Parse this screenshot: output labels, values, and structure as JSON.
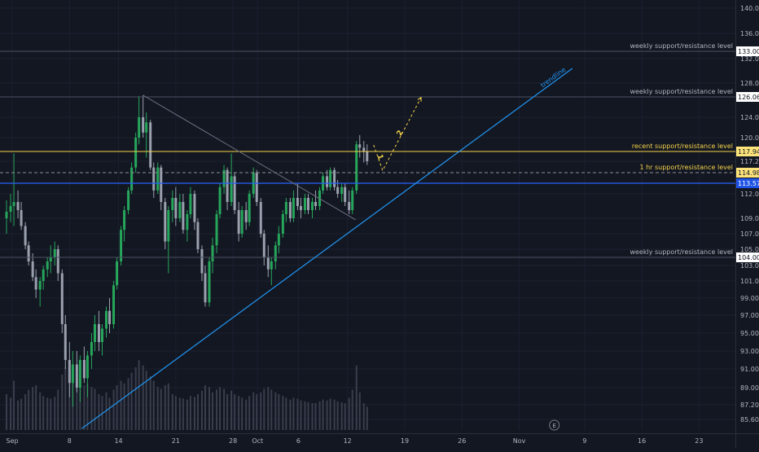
{
  "theme": {
    "background": "#131722",
    "axis_text": "#b2b5be",
    "grid": "#1c2030",
    "up_color": "#26a65b",
    "down_color": "#9aa0ad",
    "weekly_level_color": "#4a5063",
    "recent_level_color": "#f5d34a",
    "hourly_level_color": "#8e8f94",
    "blue_level_color": "#2962ff",
    "trendline_color": "#2196f3",
    "downtrend_color": "#6b7080",
    "projection_color": "#f5d34a"
  },
  "chart_data": {
    "type": "candlestick",
    "y_axis": {
      "ticks": [
        140.0,
        136.0,
        132.0,
        128.0,
        124.0,
        120.0,
        117.24,
        112.0,
        109.0,
        107.0,
        105.0,
        103.0,
        101.0,
        99.0,
        97.0,
        95.0,
        93.0,
        91.0,
        89.0,
        87.2,
        85.6
      ],
      "tick_labels": [
        "140.00",
        "136.00",
        "132.00",
        "128.00",
        "124.00",
        "120.00",
        "117.24",
        "112.00",
        "109.00",
        "107.00",
        "105.00",
        "103.00",
        "101.00",
        "99.00",
        "97.00",
        "95.00",
        "93.00",
        "91.00",
        "89.00",
        "87.20",
        "85.60"
      ]
    },
    "x_axis": {
      "ticks": [
        {
          "label": "Sep",
          "day": 1
        },
        {
          "label": "8",
          "day": 8
        },
        {
          "label": "14",
          "day": 14
        },
        {
          "label": "21",
          "day": 21
        },
        {
          "label": "28",
          "day": 28
        },
        {
          "label": "Oct",
          "day": 31
        },
        {
          "label": "6",
          "day": 36
        },
        {
          "label": "12",
          "day": 42
        },
        {
          "label": "19",
          "day": 49
        },
        {
          "label": "26",
          "day": 56
        },
        {
          "label": "Nov",
          "day": 63
        },
        {
          "label": "9",
          "day": 71
        },
        {
          "label": "16",
          "day": 78
        },
        {
          "label": "23",
          "day": 85
        }
      ]
    },
    "levels": [
      {
        "price": 133.0,
        "price_label": "133.00",
        "label": "weekly support/resistance level",
        "kind": "weekly"
      },
      {
        "price": 126.06,
        "price_label": "126.06",
        "label": "weekly support/resistance level",
        "kind": "weekly"
      },
      {
        "price": 117.94,
        "price_label": "117.94",
        "label": "recent support/resistance level",
        "kind": "recent"
      },
      {
        "price": 114.98,
        "price_label": "114.98",
        "label": "1 hr support/resistance level",
        "kind": "hourly"
      },
      {
        "price": 113.57,
        "price_label": "113.57",
        "label": "",
        "kind": "blue"
      },
      {
        "price": 104.0,
        "price_label": "104.00",
        "label": "weekly support/resistance level",
        "kind": "weekly"
      }
    ],
    "trendline": {
      "label": "trendline",
      "from": {
        "day": 9.5,
        "price": 84.6
      },
      "to": {
        "day": 69.5,
        "price": 130.4
      }
    },
    "downtrend_line": {
      "from": {
        "day": 17,
        "price": 126.3
      },
      "to": {
        "day": 43,
        "price": 108.8
      }
    },
    "projection": {
      "wave_labels": [
        "1",
        "2"
      ],
      "points": [
        {
          "day": 45.2,
          "price": 118.9
        },
        {
          "day": 46.3,
          "price": 115.4
        },
        {
          "day": 51.0,
          "price": 126.0
        }
      ]
    },
    "earnings_marker": {
      "label": "E",
      "day": 67.3
    },
    "volume_scale_max": 100,
    "candles": [
      {
        "day": 0.3,
        "o": 109.0,
        "h": 111.2,
        "l": 107.0,
        "c": 109.8,
        "v": 40
      },
      {
        "day": 0.8,
        "o": 109.8,
        "h": 112.0,
        "l": 108.5,
        "c": 110.5,
        "v": 36
      },
      {
        "day": 1.2,
        "o": 110.5,
        "h": 117.8,
        "l": 108.0,
        "c": 111.0,
        "v": 55
      },
      {
        "day": 1.7,
        "o": 111.0,
        "h": 112.5,
        "l": 109.0,
        "c": 110.0,
        "v": 33
      },
      {
        "day": 2.1,
        "o": 110.0,
        "h": 111.0,
        "l": 107.5,
        "c": 108.0,
        "v": 35
      },
      {
        "day": 2.6,
        "o": 108.0,
        "h": 108.5,
        "l": 105.0,
        "c": 105.5,
        "v": 40
      },
      {
        "day": 3.0,
        "o": 105.5,
        "h": 106.0,
        "l": 103.0,
        "c": 103.5,
        "v": 45
      },
      {
        "day": 3.5,
        "o": 103.5,
        "h": 104.5,
        "l": 101.0,
        "c": 101.5,
        "v": 48
      },
      {
        "day": 3.9,
        "o": 101.5,
        "h": 102.5,
        "l": 99.0,
        "c": 100.0,
        "v": 50
      },
      {
        "day": 4.4,
        "o": 100.0,
        "h": 101.5,
        "l": 98.0,
        "c": 101.0,
        "v": 42
      },
      {
        "day": 4.8,
        "o": 101.0,
        "h": 103.0,
        "l": 100.0,
        "c": 102.5,
        "v": 38
      },
      {
        "day": 5.3,
        "o": 102.5,
        "h": 104.0,
        "l": 101.5,
        "c": 103.5,
        "v": 36
      },
      {
        "day": 5.7,
        "o": 103.5,
        "h": 105.5,
        "l": 102.0,
        "c": 104.0,
        "v": 35
      },
      {
        "day": 6.2,
        "o": 104.0,
        "h": 106.0,
        "l": 103.0,
        "c": 105.0,
        "v": 37
      },
      {
        "day": 6.6,
        "o": 105.0,
        "h": 105.5,
        "l": 101.0,
        "c": 102.0,
        "v": 45
      },
      {
        "day": 7.1,
        "o": 102.0,
        "h": 102.5,
        "l": 95.0,
        "c": 96.0,
        "v": 62
      },
      {
        "day": 7.5,
        "o": 96.0,
        "h": 97.0,
        "l": 91.0,
        "c": 92.0,
        "v": 70
      },
      {
        "day": 8.0,
        "o": 92.0,
        "h": 94.0,
        "l": 88.0,
        "c": 89.5,
        "v": 75
      },
      {
        "day": 8.4,
        "o": 89.5,
        "h": 93.0,
        "l": 87.0,
        "c": 91.5,
        "v": 66
      },
      {
        "day": 8.9,
        "o": 91.5,
        "h": 93.0,
        "l": 88.5,
        "c": 89.0,
        "v": 55
      },
      {
        "day": 9.3,
        "o": 89.0,
        "h": 92.5,
        "l": 87.5,
        "c": 92.0,
        "v": 60
      },
      {
        "day": 9.8,
        "o": 92.0,
        "h": 93.5,
        "l": 89.5,
        "c": 90.0,
        "v": 50
      },
      {
        "day": 10.2,
        "o": 90.0,
        "h": 93.0,
        "l": 88.0,
        "c": 92.5,
        "v": 52
      },
      {
        "day": 10.7,
        "o": 92.5,
        "h": 95.0,
        "l": 91.0,
        "c": 94.0,
        "v": 48
      },
      {
        "day": 11.1,
        "o": 94.0,
        "h": 97.0,
        "l": 93.0,
        "c": 96.0,
        "v": 46
      },
      {
        "day": 11.6,
        "o": 96.0,
        "h": 97.5,
        "l": 93.0,
        "c": 94.0,
        "v": 40
      },
      {
        "day": 12.0,
        "o": 94.0,
        "h": 96.0,
        "l": 92.5,
        "c": 95.5,
        "v": 38
      },
      {
        "day": 12.5,
        "o": 95.5,
        "h": 98.0,
        "l": 94.5,
        "c": 97.5,
        "v": 42
      },
      {
        "day": 12.9,
        "o": 97.5,
        "h": 99.0,
        "l": 95.0,
        "c": 96.0,
        "v": 36
      },
      {
        "day": 13.4,
        "o": 96.0,
        "h": 101.0,
        "l": 95.5,
        "c": 100.5,
        "v": 45
      },
      {
        "day": 13.8,
        "o": 100.5,
        "h": 104.0,
        "l": 100.0,
        "c": 103.5,
        "v": 50
      },
      {
        "day": 14.3,
        "o": 103.5,
        "h": 108.0,
        "l": 103.0,
        "c": 107.5,
        "v": 55
      },
      {
        "day": 14.7,
        "o": 107.5,
        "h": 110.5,
        "l": 106.0,
        "c": 110.0,
        "v": 52
      },
      {
        "day": 15.2,
        "o": 110.0,
        "h": 113.0,
        "l": 109.5,
        "c": 112.5,
        "v": 58
      },
      {
        "day": 15.6,
        "o": 112.5,
        "h": 117.0,
        "l": 112.0,
        "c": 116.0,
        "v": 64
      },
      {
        "day": 16.1,
        "o": 116.0,
        "h": 121.0,
        "l": 115.0,
        "c": 120.0,
        "v": 70
      },
      {
        "day": 16.5,
        "o": 120.0,
        "h": 126.2,
        "l": 119.0,
        "c": 124.0,
        "v": 78
      },
      {
        "day": 17.0,
        "o": 124.0,
        "h": 126.3,
        "l": 120.0,
        "c": 121.0,
        "v": 72
      },
      {
        "day": 17.4,
        "o": 121.0,
        "h": 124.5,
        "l": 117.5,
        "c": 123.0,
        "v": 66
      },
      {
        "day": 17.9,
        "o": 123.0,
        "h": 123.5,
        "l": 115.5,
        "c": 116.0,
        "v": 60
      },
      {
        "day": 18.3,
        "o": 116.0,
        "h": 117.0,
        "l": 111.5,
        "c": 112.5,
        "v": 55
      },
      {
        "day": 18.8,
        "o": 112.5,
        "h": 117.0,
        "l": 112.0,
        "c": 116.0,
        "v": 48
      },
      {
        "day": 19.2,
        "o": 116.0,
        "h": 116.5,
        "l": 110.0,
        "c": 111.0,
        "v": 46
      },
      {
        "day": 19.7,
        "o": 111.0,
        "h": 111.5,
        "l": 105.0,
        "c": 106.0,
        "v": 50
      },
      {
        "day": 20.1,
        "o": 106.0,
        "h": 110.5,
        "l": 102.0,
        "c": 110.0,
        "v": 52
      },
      {
        "day": 20.6,
        "o": 110.0,
        "h": 112.5,
        "l": 108.5,
        "c": 111.5,
        "v": 40
      },
      {
        "day": 21.0,
        "o": 111.5,
        "h": 113.0,
        "l": 108.0,
        "c": 109.0,
        "v": 38
      },
      {
        "day": 21.5,
        "o": 109.0,
        "h": 112.0,
        "l": 108.5,
        "c": 111.0,
        "v": 36
      },
      {
        "day": 21.9,
        "o": 111.0,
        "h": 112.0,
        "l": 107.0,
        "c": 107.5,
        "v": 35
      },
      {
        "day": 22.4,
        "o": 107.5,
        "h": 110.0,
        "l": 106.0,
        "c": 109.5,
        "v": 34
      },
      {
        "day": 22.8,
        "o": 109.5,
        "h": 113.0,
        "l": 109.0,
        "c": 112.0,
        "v": 38
      },
      {
        "day": 23.3,
        "o": 112.0,
        "h": 112.5,
        "l": 107.5,
        "c": 108.5,
        "v": 37
      },
      {
        "day": 23.7,
        "o": 108.5,
        "h": 109.0,
        "l": 104.5,
        "c": 105.0,
        "v": 40
      },
      {
        "day": 24.2,
        "o": 105.0,
        "h": 105.5,
        "l": 101.0,
        "c": 102.0,
        "v": 44
      },
      {
        "day": 24.6,
        "o": 102.0,
        "h": 103.0,
        "l": 98.0,
        "c": 98.5,
        "v": 50
      },
      {
        "day": 25.1,
        "o": 98.5,
        "h": 104.0,
        "l": 98.0,
        "c": 103.5,
        "v": 48
      },
      {
        "day": 25.5,
        "o": 103.5,
        "h": 106.5,
        "l": 102.0,
        "c": 105.5,
        "v": 42
      },
      {
        "day": 26.0,
        "o": 105.5,
        "h": 110.0,
        "l": 104.5,
        "c": 109.5,
        "v": 45
      },
      {
        "day": 26.4,
        "o": 109.5,
        "h": 113.5,
        "l": 109.0,
        "c": 113.0,
        "v": 48
      },
      {
        "day": 26.9,
        "o": 113.0,
        "h": 116.5,
        "l": 112.0,
        "c": 115.5,
        "v": 46
      },
      {
        "day": 27.3,
        "o": 115.5,
        "h": 116.0,
        "l": 110.0,
        "c": 111.0,
        "v": 40
      },
      {
        "day": 27.8,
        "o": 111.0,
        "h": 117.8,
        "l": 110.5,
        "c": 114.5,
        "v": 44
      },
      {
        "day": 28.2,
        "o": 114.5,
        "h": 115.0,
        "l": 109.5,
        "c": 110.0,
        "v": 40
      },
      {
        "day": 28.7,
        "o": 110.0,
        "h": 111.0,
        "l": 106.0,
        "c": 107.0,
        "v": 38
      },
      {
        "day": 29.1,
        "o": 107.0,
        "h": 110.5,
        "l": 106.5,
        "c": 110.0,
        "v": 36
      },
      {
        "day": 29.6,
        "o": 110.0,
        "h": 111.0,
        "l": 107.5,
        "c": 108.5,
        "v": 34
      },
      {
        "day": 30.0,
        "o": 108.5,
        "h": 112.5,
        "l": 108.0,
        "c": 112.0,
        "v": 38
      },
      {
        "day": 30.5,
        "o": 112.0,
        "h": 116.0,
        "l": 111.5,
        "c": 115.0,
        "v": 42
      },
      {
        "day": 30.9,
        "o": 115.0,
        "h": 115.5,
        "l": 110.5,
        "c": 111.0,
        "v": 40
      },
      {
        "day": 31.4,
        "o": 111.0,
        "h": 111.5,
        "l": 106.5,
        "c": 107.0,
        "v": 42
      },
      {
        "day": 31.8,
        "o": 107.0,
        "h": 107.5,
        "l": 103.0,
        "c": 104.0,
        "v": 46
      },
      {
        "day": 32.3,
        "o": 104.0,
        "h": 105.5,
        "l": 101.5,
        "c": 102.5,
        "v": 48
      },
      {
        "day": 32.7,
        "o": 102.5,
        "h": 104.0,
        "l": 100.5,
        "c": 103.5,
        "v": 45
      },
      {
        "day": 33.2,
        "o": 103.5,
        "h": 106.0,
        "l": 102.5,
        "c": 105.5,
        "v": 42
      },
      {
        "day": 33.6,
        "o": 105.5,
        "h": 108.0,
        "l": 104.5,
        "c": 107.0,
        "v": 40
      },
      {
        "day": 34.1,
        "o": 107.0,
        "h": 110.0,
        "l": 106.5,
        "c": 109.5,
        "v": 38
      },
      {
        "day": 34.5,
        "o": 109.5,
        "h": 111.5,
        "l": 108.5,
        "c": 111.0,
        "v": 36
      },
      {
        "day": 35.0,
        "o": 111.0,
        "h": 111.5,
        "l": 108.5,
        "c": 109.0,
        "v": 34
      },
      {
        "day": 35.4,
        "o": 109.0,
        "h": 112.5,
        "l": 108.5,
        "c": 111.5,
        "v": 36
      },
      {
        "day": 35.9,
        "o": 111.5,
        "h": 113.5,
        "l": 110.0,
        "c": 110.5,
        "v": 35
      },
      {
        "day": 36.3,
        "o": 110.5,
        "h": 111.5,
        "l": 109.0,
        "c": 110.0,
        "v": 33
      },
      {
        "day": 36.8,
        "o": 110.0,
        "h": 112.0,
        "l": 109.5,
        "c": 111.5,
        "v": 32
      },
      {
        "day": 37.2,
        "o": 111.5,
        "h": 112.0,
        "l": 109.5,
        "c": 110.0,
        "v": 31
      },
      {
        "day": 37.7,
        "o": 110.0,
        "h": 111.5,
        "l": 109.0,
        "c": 111.0,
        "v": 30
      },
      {
        "day": 38.1,
        "o": 111.0,
        "h": 112.5,
        "l": 110.0,
        "c": 110.5,
        "v": 30
      },
      {
        "day": 38.6,
        "o": 110.5,
        "h": 113.0,
        "l": 110.0,
        "c": 112.5,
        "v": 32
      },
      {
        "day": 39.0,
        "o": 112.5,
        "h": 115.0,
        "l": 112.0,
        "c": 114.5,
        "v": 34
      },
      {
        "day": 39.5,
        "o": 114.5,
        "h": 115.5,
        "l": 112.5,
        "c": 113.0,
        "v": 33
      },
      {
        "day": 39.9,
        "o": 113.0,
        "h": 116.0,
        "l": 112.5,
        "c": 115.5,
        "v": 35
      },
      {
        "day": 40.4,
        "o": 115.5,
        "h": 116.0,
        "l": 112.5,
        "c": 113.0,
        "v": 34
      },
      {
        "day": 40.8,
        "o": 113.0,
        "h": 114.0,
        "l": 111.5,
        "c": 112.0,
        "v": 32
      },
      {
        "day": 41.3,
        "o": 112.0,
        "h": 113.5,
        "l": 111.0,
        "c": 113.0,
        "v": 31
      },
      {
        "day": 41.7,
        "o": 113.0,
        "h": 113.5,
        "l": 110.5,
        "c": 111.0,
        "v": 30
      },
      {
        "day": 42.2,
        "o": 111.0,
        "h": 112.5,
        "l": 109.5,
        "c": 110.0,
        "v": 36
      },
      {
        "day": 42.6,
        "o": 110.0,
        "h": 113.0,
        "l": 109.5,
        "c": 112.5,
        "v": 45
      },
      {
        "day": 43.1,
        "o": 112.5,
        "h": 119.5,
        "l": 112.0,
        "c": 119.0,
        "v": 72
      },
      {
        "day": 43.5,
        "o": 119.0,
        "h": 120.5,
        "l": 117.5,
        "c": 118.5,
        "v": 42
      },
      {
        "day": 44.0,
        "o": 118.5,
        "h": 119.5,
        "l": 117.0,
        "c": 118.0,
        "v": 30
      },
      {
        "day": 44.4,
        "o": 118.0,
        "h": 119.0,
        "l": 116.5,
        "c": 117.24,
        "v": 26
      }
    ]
  }
}
